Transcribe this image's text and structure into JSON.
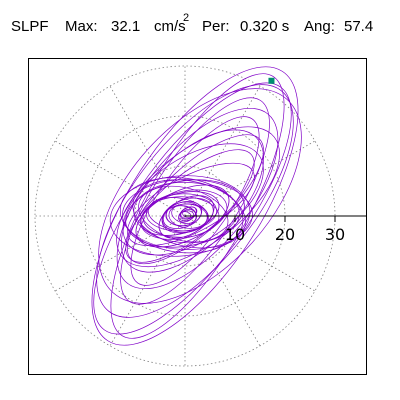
{
  "header": {
    "filter_label": "SLPF",
    "max_label": "Max:",
    "max_value": "32.1",
    "max_unit": "cm/s",
    "max_unit_exp": "2",
    "period_label": "Per:",
    "period_value": "0.320 s",
    "angle_label": "Ang:",
    "angle_value": "57.4"
  },
  "chart_data": {
    "type": "polar-orbit",
    "title": "SLPF Max: 32.1 cm/s2 Per: 0.320 s Ang: 57.4",
    "rings": [
      10,
      20,
      30
    ],
    "tick_labels": [
      "10",
      "20",
      "30"
    ],
    "max_value": 32.1,
    "angle_deg": 57.4,
    "grid": "dotted-polar",
    "colors": {
      "trace": "#8000c8",
      "peak_marker": "#009070",
      "grid": "#808080",
      "axis": "#000000"
    },
    "trace_segments": [
      {
        "a": 2,
        "b": 1.2,
        "rot": 35,
        "cx": 0.5,
        "cy": 0.3,
        "w": 5
      },
      {
        "a": 4,
        "b": 2.5,
        "rot": 20,
        "cx": -0.5,
        "cy": 0.2,
        "w": 4
      },
      {
        "a": 6,
        "b": 3.5,
        "rot": 30,
        "cx": 0.3,
        "cy": -0.2,
        "w": 4
      },
      {
        "a": 8,
        "b": 4,
        "rot": 15,
        "cx": -1,
        "cy": 0.5,
        "w": 3
      },
      {
        "a": 10,
        "b": 5,
        "rot": 25,
        "cx": -0.5,
        "cy": 0,
        "w": 3
      },
      {
        "a": 12,
        "b": 6.5,
        "rot": 10,
        "cx": 0,
        "cy": 0.5,
        "w": 3
      },
      {
        "a": 13,
        "b": 7,
        "rot": 0,
        "cx": 0.5,
        "cy": 0.3,
        "w": 2
      },
      {
        "a": 14,
        "b": 8,
        "rot": 5,
        "cx": -1,
        "cy": 0,
        "w": 2
      },
      {
        "a": 16,
        "b": 6,
        "rot": 40,
        "cx": 1,
        "cy": 2,
        "w": 2
      },
      {
        "a": 18,
        "b": 9,
        "rot": 45,
        "cx": 1.5,
        "cy": 3,
        "w": 2
      },
      {
        "a": 20,
        "b": 7,
        "rot": 55,
        "cx": 2,
        "cy": 3,
        "w": 2
      },
      {
        "a": 22,
        "b": 10,
        "rot": 50,
        "cx": 2.5,
        "cy": 3.5,
        "w": 2
      },
      {
        "a": 24,
        "b": 8.5,
        "rot": 57,
        "cx": 2,
        "cy": 3,
        "w": 1
      },
      {
        "a": 28,
        "b": 12,
        "rot": 52,
        "cx": 2,
        "cy": 3,
        "w": 1
      },
      {
        "a": 30,
        "b": 11,
        "rot": 54,
        "cx": 1.5,
        "cy": 1.5,
        "w": 1
      },
      {
        "a": 32.1,
        "b": 13,
        "rot": 57,
        "cx": 2,
        "cy": 2,
        "w": 1
      },
      {
        "a": 26,
        "b": 14,
        "rot": 48,
        "cx": 3,
        "cy": 4,
        "w": 1
      },
      {
        "a": 30,
        "b": 10,
        "rot": 60,
        "cx": 2.5,
        "cy": 2,
        "w": 1
      }
    ],
    "peak_point": {
      "r": 32.1,
      "angle_deg": 57.4
    }
  }
}
